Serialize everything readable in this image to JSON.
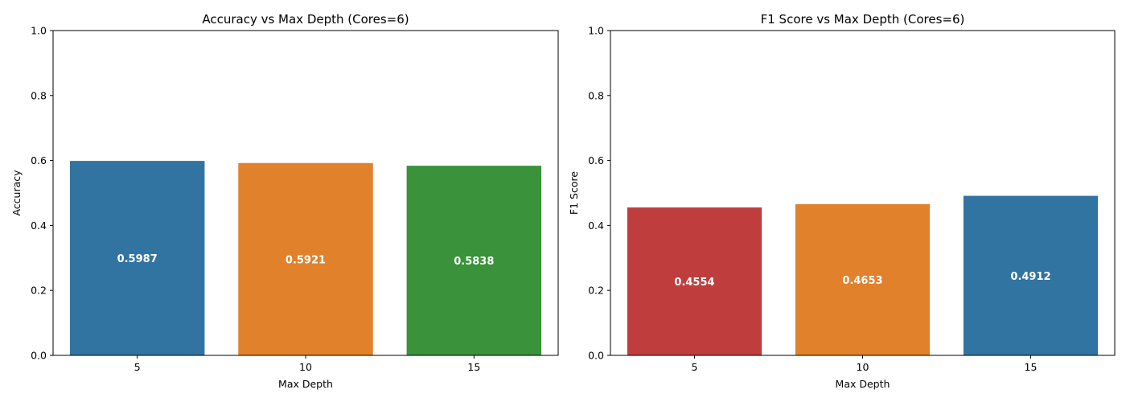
{
  "chart_data": [
    {
      "type": "bar",
      "title": "Accuracy vs Max Depth (Cores=6)",
      "xlabel": "Max Depth",
      "ylabel": "Accuracy",
      "categories": [
        "5",
        "10",
        "15"
      ],
      "values": [
        0.5987,
        0.5921,
        0.5838
      ],
      "value_labels": [
        "0.5987",
        "0.5921",
        "0.5838"
      ],
      "colors": [
        "#3274a1",
        "#e1812c",
        "#3a923a"
      ],
      "ylim": [
        0,
        1
      ],
      "yticks": [
        0.0,
        0.2,
        0.4,
        0.6,
        0.8,
        1.0
      ],
      "ytick_labels": [
        "0.0",
        "0.2",
        "0.4",
        "0.6",
        "0.8",
        "1.0"
      ],
      "grid": false
    },
    {
      "type": "bar",
      "title": "F1 Score vs Max Depth (Cores=6)",
      "xlabel": "Max Depth",
      "ylabel": "F1 Score",
      "categories": [
        "5",
        "10",
        "15"
      ],
      "values": [
        0.4554,
        0.4653,
        0.4912
      ],
      "value_labels": [
        "0.4554",
        "0.4653",
        "0.4912"
      ],
      "colors": [
        "#c03d3e",
        "#e1812c",
        "#3274a1"
      ],
      "ylim": [
        0,
        1
      ],
      "yticks": [
        0.0,
        0.2,
        0.4,
        0.6,
        0.8,
        1.0
      ],
      "ytick_labels": [
        "0.0",
        "0.2",
        "0.4",
        "0.6",
        "0.8",
        "1.0"
      ],
      "grid": false
    }
  ]
}
